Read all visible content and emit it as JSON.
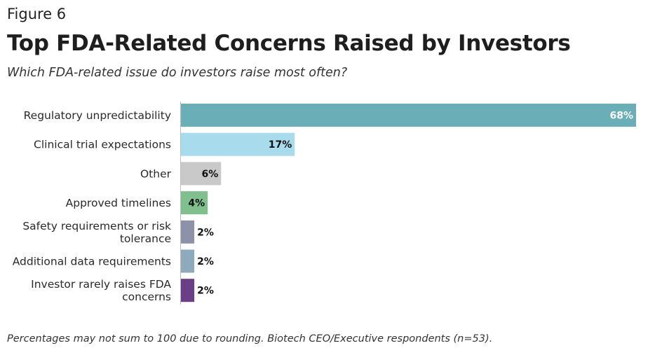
{
  "figure_label": "Figure 6",
  "chart_data": {
    "type": "bar",
    "orientation": "horizontal",
    "title": "Top FDA-Related Concerns Raised by Investors",
    "subtitle": "Which FDA-related issue do investors raise most often?",
    "categories": [
      [
        "Regulatory unpredictability"
      ],
      [
        "Clinical trial expectations"
      ],
      [
        "Other"
      ],
      [
        "Approved timelines"
      ],
      [
        "Safety requirements or risk",
        "tolerance"
      ],
      [
        "Additional data requirements"
      ],
      [
        "Investor rarely raises FDA",
        "concerns"
      ]
    ],
    "values": [
      68,
      17,
      6,
      4,
      2,
      2,
      2
    ],
    "value_labels": [
      "68%",
      "17%",
      "6%",
      "4%",
      "2%",
      "2%",
      "2%"
    ],
    "colors": [
      "#6aaeb7",
      "#a8dcec",
      "#c9c9c9",
      "#7fc08e",
      "#8e92a8",
      "#8fa9bd",
      "#6a3f85"
    ],
    "label_colors": [
      "#ffffff",
      "#111111",
      "#111111",
      "#111111",
      "#111111",
      "#111111",
      "#111111"
    ],
    "xlim": [
      0,
      68
    ],
    "grid": false,
    "legend": "none"
  },
  "footnote": "Percentages may not sum to 100 due to rounding. Biotech CEO/Executive respondents (n=53)."
}
